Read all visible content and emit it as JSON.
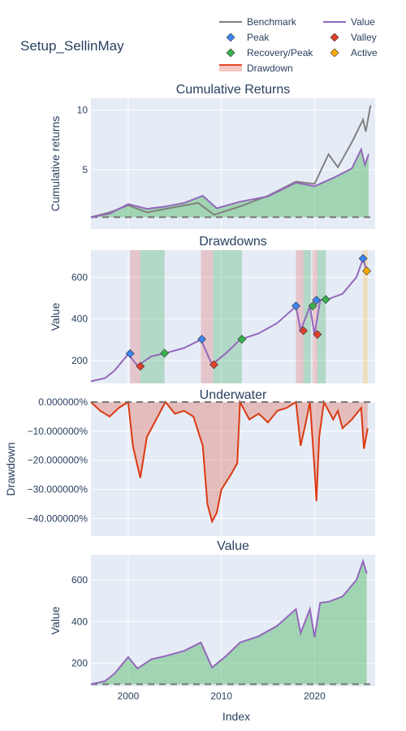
{
  "figure_title": "Setup_SellinMay",
  "x_axis_title": "Index",
  "x_ticks": [
    "2000",
    "2010",
    "2020"
  ],
  "legend": [
    {
      "label": "Benchmark",
      "color": "#808080",
      "symbol": "line"
    },
    {
      "label": "Value",
      "color": "#9467bd",
      "symbol": "line"
    },
    {
      "label": "Peak",
      "color": "#3d85f0",
      "symbol": "diamond"
    },
    {
      "label": "Valley",
      "color": "#e0402a",
      "symbol": "diamond"
    },
    {
      "label": "Recovery/Peak",
      "color": "#37b24d",
      "symbol": "diamond"
    },
    {
      "label": "Active",
      "color": "#ffaa00",
      "symbol": "diamond"
    },
    {
      "label": "Drawdown",
      "color": "#e8492b",
      "symbol": "band"
    }
  ],
  "colors": {
    "plot_bg": "#e5ecf6",
    "grid": "#ffffff",
    "value": "#9467bd",
    "benchmark": "#808080",
    "green_fill": "rgba(75,185,95,0.45)",
    "dd_line": "#dc3a12",
    "dd_fill": "rgba(225,100,80,0.35)",
    "text": "#2a3f5f"
  },
  "chart_data": [
    {
      "type": "line",
      "title": "Cumulative Returns",
      "ylabel": "Cumulative returns",
      "xlim": [
        1996.0,
        2026.5
      ],
      "ylim": [
        0.0,
        11.0
      ],
      "y_ticks": [
        5,
        10
      ],
      "baseline": 1,
      "series": [
        {
          "name": "Value",
          "points": [
            [
              1996.0,
              1.0
            ],
            [
              1998.0,
              1.3
            ],
            [
              2000.0,
              2.1
            ],
            [
              2002.0,
              1.7
            ],
            [
              2004.0,
              1.9
            ],
            [
              2006.0,
              2.2
            ],
            [
              2008.0,
              2.8
            ],
            [
              2009.5,
              1.75
            ],
            [
              2012.0,
              2.3
            ],
            [
              2015.0,
              2.75
            ],
            [
              2018.0,
              3.9
            ],
            [
              2020.0,
              3.6
            ],
            [
              2022.0,
              4.3
            ],
            [
              2024.0,
              5.1
            ],
            [
              2025.0,
              6.7
            ],
            [
              2025.4,
              5.4
            ],
            [
              2025.8,
              6.3
            ]
          ]
        },
        {
          "name": "Benchmark",
          "points": [
            [
              1996.0,
              1.0
            ],
            [
              1998.0,
              1.4
            ],
            [
              2000.0,
              2.0
            ],
            [
              2002.0,
              1.4
            ],
            [
              2004.0,
              1.7
            ],
            [
              2007.5,
              2.2
            ],
            [
              2009.2,
              1.2
            ],
            [
              2012.0,
              1.9
            ],
            [
              2015.0,
              2.8
            ],
            [
              2018.0,
              4.0
            ],
            [
              2020.0,
              3.8
            ],
            [
              2021.5,
              6.3
            ],
            [
              2022.5,
              5.2
            ],
            [
              2024.0,
              7.3
            ],
            [
              2025.2,
              9.2
            ],
            [
              2025.5,
              8.2
            ],
            [
              2026.0,
              10.4
            ]
          ]
        }
      ]
    },
    {
      "type": "line",
      "title": "Drawdowns",
      "ylabel": "Value",
      "xlim": [
        1996.0,
        2026.5
      ],
      "ylim": [
        90.0,
        730.0
      ],
      "y_ticks": [
        200,
        400,
        600
      ],
      "drawdown_spans": [
        [
          2000.2,
          2001.3
        ],
        [
          2007.8,
          2009.1
        ],
        [
          2018.0,
          2018.8
        ],
        [
          2019.8,
          2020.3
        ]
      ],
      "recovery_spans": [
        [
          2001.3,
          2003.9
        ],
        [
          2009.1,
          2012.2
        ],
        [
          2018.8,
          2019.6
        ],
        [
          2020.3,
          2021.2
        ]
      ],
      "active_spans": [
        [
          2025.2,
          2025.7
        ]
      ],
      "series": [
        {
          "name": "Value",
          "points": [
            [
              1996.0,
              100
            ],
            [
              1997.5,
              115
            ],
            [
              1998.5,
              150
            ],
            [
              2000.0,
              230
            ],
            [
              2001.0,
              175
            ],
            [
              2002.5,
              220
            ],
            [
              2004.0,
              235
            ],
            [
              2006.0,
              260
            ],
            [
              2007.8,
              300
            ],
            [
              2009.0,
              180
            ],
            [
              2010.5,
              235
            ],
            [
              2012.0,
              300
            ],
            [
              2014.0,
              330
            ],
            [
              2016.0,
              380
            ],
            [
              2018.0,
              460
            ],
            [
              2018.5,
              345
            ],
            [
              2019.5,
              460
            ],
            [
              2020.0,
              325
            ],
            [
              2020.6,
              490
            ],
            [
              2021.5,
              495
            ],
            [
              2023.0,
              520
            ],
            [
              2024.5,
              600
            ],
            [
              2025.2,
              690
            ],
            [
              2025.6,
              630
            ]
          ]
        }
      ],
      "markers": [
        {
          "kind": "Peak",
          "x": 2000.2,
          "y": 233
        },
        {
          "kind": "Valley",
          "x": 2001.3,
          "y": 172
        },
        {
          "kind": "Recovery/Peak",
          "x": 2003.9,
          "y": 235
        },
        {
          "kind": "Peak",
          "x": 2007.9,
          "y": 302
        },
        {
          "kind": "Valley",
          "x": 2009.2,
          "y": 180
        },
        {
          "kind": "Recovery/Peak",
          "x": 2012.2,
          "y": 302
        },
        {
          "kind": "Peak",
          "x": 2018.0,
          "y": 462
        },
        {
          "kind": "Valley",
          "x": 2018.8,
          "y": 343
        },
        {
          "kind": "Recovery/Peak",
          "x": 2019.8,
          "y": 462
        },
        {
          "kind": "Peak",
          "x": 2020.2,
          "y": 490
        },
        {
          "kind": "Valley",
          "x": 2020.3,
          "y": 325
        },
        {
          "kind": "Recovery/Peak",
          "x": 2021.2,
          "y": 493
        },
        {
          "kind": "Peak",
          "x": 2025.2,
          "y": 690
        },
        {
          "kind": "Active",
          "x": 2025.6,
          "y": 630
        }
      ]
    },
    {
      "type": "area",
      "title": "Underwater",
      "ylabel": "Drawdown",
      "xlim": [
        1996.0,
        2026.5
      ],
      "ylim": [
        -0.46,
        0.0
      ],
      "y_ticks": [
        0,
        -0.1,
        -0.2,
        -0.3,
        -0.4
      ],
      "y_tick_labels": [
        "0.000000%",
        "−10.000000%",
        "−20.000000%",
        "−30.000000%",
        "−40.000000%"
      ],
      "series": [
        {
          "name": "Drawdown",
          "points": [
            [
              1996.0,
              0
            ],
            [
              1997.0,
              -0.03
            ],
            [
              1998.0,
              -0.05
            ],
            [
              1999.0,
              -0.02
            ],
            [
              2000.0,
              0
            ],
            [
              2000.5,
              -0.15
            ],
            [
              2001.0,
              -0.22
            ],
            [
              2001.3,
              -0.26
            ],
            [
              2002.0,
              -0.12
            ],
            [
              2003.0,
              -0.06
            ],
            [
              2004.0,
              0
            ],
            [
              2005.0,
              -0.04
            ],
            [
              2006.0,
              -0.03
            ],
            [
              2007.0,
              -0.05
            ],
            [
              2008.0,
              -0.15
            ],
            [
              2008.5,
              -0.35
            ],
            [
              2009.0,
              -0.41
            ],
            [
              2009.5,
              -0.38
            ],
            [
              2010.0,
              -0.3
            ],
            [
              2011.0,
              -0.25
            ],
            [
              2011.7,
              -0.21
            ],
            [
              2012.0,
              0
            ],
            [
              2013.0,
              -0.06
            ],
            [
              2014.0,
              -0.04
            ],
            [
              2015.0,
              -0.07
            ],
            [
              2016.0,
              -0.03
            ],
            [
              2017.0,
              -0.02
            ],
            [
              2018.0,
              0
            ],
            [
              2018.5,
              -0.15
            ],
            [
              2019.0,
              -0.08
            ],
            [
              2019.5,
              0
            ],
            [
              2020.0,
              -0.23
            ],
            [
              2020.2,
              -0.34
            ],
            [
              2020.5,
              -0.12
            ],
            [
              2021.0,
              0
            ],
            [
              2022.0,
              -0.06
            ],
            [
              2022.5,
              -0.03
            ],
            [
              2023.0,
              -0.09
            ],
            [
              2024.0,
              -0.06
            ],
            [
              2025.0,
              -0.02
            ],
            [
              2025.3,
              -0.16
            ],
            [
              2025.7,
              -0.09
            ]
          ]
        }
      ]
    },
    {
      "type": "area",
      "title": "Value",
      "ylabel": "Value",
      "xlim": [
        1996.0,
        2026.5
      ],
      "ylim": [
        90.0,
        720.0
      ],
      "y_ticks": [
        200,
        400,
        600
      ],
      "baseline": 100,
      "series": [
        {
          "name": "Value",
          "points": [
            [
              1996.0,
              100
            ],
            [
              1997.5,
              115
            ],
            [
              1998.5,
              150
            ],
            [
              2000.0,
              230
            ],
            [
              2001.0,
              175
            ],
            [
              2002.5,
              220
            ],
            [
              2004.0,
              235
            ],
            [
              2006.0,
              260
            ],
            [
              2007.8,
              300
            ],
            [
              2009.0,
              180
            ],
            [
              2010.5,
              235
            ],
            [
              2012.0,
              300
            ],
            [
              2014.0,
              330
            ],
            [
              2016.0,
              380
            ],
            [
              2018.0,
              460
            ],
            [
              2018.5,
              345
            ],
            [
              2019.5,
              460
            ],
            [
              2020.0,
              325
            ],
            [
              2020.6,
              490
            ],
            [
              2021.5,
              495
            ],
            [
              2023.0,
              520
            ],
            [
              2024.5,
              600
            ],
            [
              2025.2,
              690
            ],
            [
              2025.6,
              630
            ]
          ]
        }
      ]
    }
  ]
}
